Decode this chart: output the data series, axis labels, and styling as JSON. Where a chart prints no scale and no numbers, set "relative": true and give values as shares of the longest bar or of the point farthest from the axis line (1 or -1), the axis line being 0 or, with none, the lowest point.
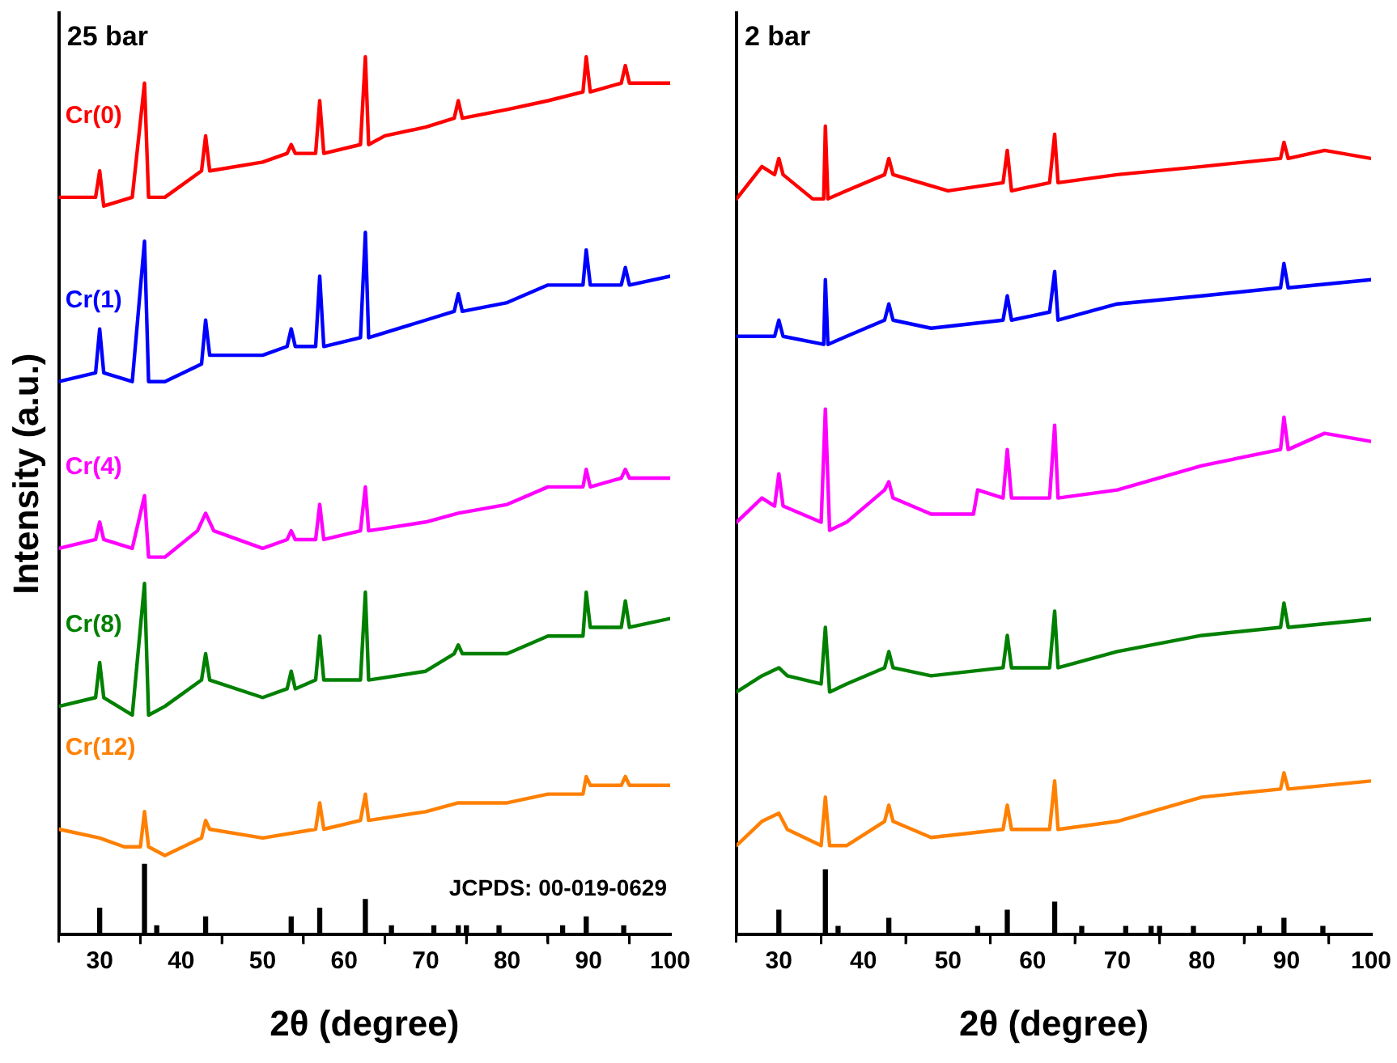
{
  "chart_data": [
    {
      "type": "line",
      "title": "25 bar",
      "xlabel": "2θ (degree)",
      "ylabel": "Intensity (a.u.)",
      "relative": true,
      "xlim": [
        25,
        100
      ],
      "xticks": [
        30,
        {
          "value": 35,
          "label": null
        },
        40,
        {
          "value": 45,
          "label": null
        },
        50,
        {
          "value": 55,
          "label": null
        },
        60,
        {
          "value": 65,
          "label": null
        },
        70,
        {
          "value": 75,
          "label": null
        },
        80,
        {
          "value": 85,
          "label": null
        },
        90,
        {
          "value": 95,
          "label": null
        },
        100
      ],
      "legend": false,
      "grid": false,
      "marker": "none",
      "line_style": "solid",
      "annotations": [
        "JCPDS: 00-019-0629"
      ],
      "series": [
        {
          "name": "Cr(0)",
          "color": "#ff0000",
          "x": [
            25,
            29.5,
            30,
            30.5,
            34,
            35.5,
            36,
            38,
            42.5,
            43,
            43.5,
            50,
            53,
            53.5,
            54,
            56.5,
            57,
            57.5,
            62,
            62.6,
            63,
            65,
            70,
            73.5,
            74,
            74.5,
            80,
            85,
            89.3,
            89.7,
            90.2,
            94,
            94.5,
            95,
            100
          ],
          "values": [
            0.84,
            0.84,
            0.87,
            0.83,
            0.84,
            0.97,
            0.84,
            0.84,
            0.87,
            0.91,
            0.87,
            0.88,
            0.89,
            0.9,
            0.89,
            0.89,
            0.95,
            0.89,
            0.9,
            1.0,
            0.9,
            0.91,
            0.92,
            0.93,
            0.95,
            0.93,
            0.94,
            0.95,
            0.96,
            1.0,
            0.96,
            0.97,
            0.99,
            0.97,
            0.97
          ]
        },
        {
          "name": "Cr(1)",
          "color": "#0000ff",
          "x": [
            25,
            29.5,
            30,
            30.5,
            34,
            35.5,
            36,
            38,
            42.5,
            43,
            43.5,
            50,
            53,
            53.5,
            54,
            56.5,
            57,
            57.5,
            62,
            62.6,
            63,
            70,
            73.5,
            74,
            74.5,
            80,
            85,
            89.3,
            89.7,
            90.2,
            94,
            94.5,
            95,
            100
          ],
          "values": [
            0.63,
            0.64,
            0.69,
            0.64,
            0.63,
            0.79,
            0.63,
            0.63,
            0.65,
            0.7,
            0.66,
            0.66,
            0.67,
            0.69,
            0.67,
            0.67,
            0.75,
            0.67,
            0.68,
            0.8,
            0.68,
            0.7,
            0.71,
            0.73,
            0.71,
            0.72,
            0.74,
            0.74,
            0.78,
            0.74,
            0.74,
            0.76,
            0.74,
            0.75
          ]
        },
        {
          "name": "Cr(4)",
          "color": "#ff00ff",
          "x": [
            25,
            29.5,
            30,
            30.5,
            34,
            35.5,
            36,
            38,
            42,
            43,
            44,
            50,
            53,
            53.5,
            54,
            56.5,
            57,
            57.5,
            62,
            62.6,
            63,
            70,
            74,
            80,
            85,
            89.3,
            89.7,
            90.2,
            94,
            94.5,
            95,
            100
          ],
          "values": [
            0.44,
            0.45,
            0.47,
            0.45,
            0.44,
            0.5,
            0.43,
            0.43,
            0.46,
            0.48,
            0.46,
            0.44,
            0.45,
            0.46,
            0.45,
            0.45,
            0.49,
            0.45,
            0.46,
            0.51,
            0.46,
            0.47,
            0.48,
            0.49,
            0.51,
            0.51,
            0.53,
            0.51,
            0.52,
            0.53,
            0.52,
            0.52
          ]
        },
        {
          "name": "Cr(8)",
          "color": "#008000",
          "x": [
            25,
            29.5,
            30,
            30.5,
            34,
            35.5,
            36,
            38,
            42.5,
            43,
            43.5,
            50,
            53,
            53.5,
            54,
            56.5,
            57,
            57.5,
            62,
            62.6,
            63,
            70,
            73.5,
            74,
            74.5,
            80,
            85,
            89.3,
            89.7,
            90.2,
            94,
            94.5,
            95,
            100
          ],
          "values": [
            0.26,
            0.27,
            0.31,
            0.27,
            0.25,
            0.4,
            0.25,
            0.26,
            0.29,
            0.32,
            0.29,
            0.27,
            0.28,
            0.3,
            0.28,
            0.29,
            0.34,
            0.29,
            0.29,
            0.39,
            0.29,
            0.3,
            0.32,
            0.33,
            0.32,
            0.32,
            0.34,
            0.34,
            0.39,
            0.35,
            0.35,
            0.38,
            0.35,
            0.36
          ]
        },
        {
          "name": "Cr(12)",
          "color": "#ff8000",
          "x": [
            25,
            30,
            33,
            35,
            35.5,
            36,
            38,
            42.5,
            43,
            43.5,
            50,
            56.5,
            57,
            57.5,
            62,
            62.6,
            63,
            70,
            74,
            80,
            85,
            89.3,
            89.7,
            90.2,
            94,
            94.5,
            95,
            100
          ],
          "values": [
            0.12,
            0.11,
            0.1,
            0.1,
            0.14,
            0.1,
            0.09,
            0.11,
            0.13,
            0.12,
            0.11,
            0.12,
            0.15,
            0.12,
            0.13,
            0.16,
            0.13,
            0.14,
            0.15,
            0.15,
            0.16,
            0.16,
            0.18,
            0.17,
            0.17,
            0.18,
            0.17,
            0.17
          ]
        },
        {
          "type": "bar",
          "color": "#000000",
          "x": [
            30,
            35.5,
            37,
            43,
            53.5,
            57,
            62.6,
            65.8,
            71,
            74,
            75,
            79,
            86.8,
            89.7,
            94.3
          ],
          "values": [
            0.03,
            0.08,
            0.01,
            0.02,
            0.02,
            0.03,
            0.04,
            0.01,
            0.01,
            0.01,
            0.01,
            0.01,
            0.01,
            0.02,
            0.01
          ]
        }
      ]
    },
    {
      "type": "line",
      "title": "2 bar",
      "xlabel": "2θ (degree)",
      "relative": true,
      "xlim": [
        25,
        100
      ],
      "xticks": [
        30,
        {
          "value": 35,
          "label": null
        },
        40,
        {
          "value": 45,
          "label": null
        },
        50,
        {
          "value": 55,
          "label": null
        },
        60,
        {
          "value": 65,
          "label": null
        },
        70,
        {
          "value": 75,
          "label": null
        },
        80,
        {
          "value": 85,
          "label": null
        },
        90,
        {
          "value": 95,
          "label": null
        },
        100
      ],
      "legend": false,
      "grid": false,
      "marker": "none",
      "line_style": "solid",
      "series": [
        {
          "color": "#ff0000",
          "x": [
            25,
            28,
            29.5,
            30,
            30.5,
            34,
            35.3,
            35.5,
            35.8,
            38,
            42.5,
            43,
            43.5,
            50,
            56.5,
            57,
            57.5,
            62,
            62.6,
            63,
            70,
            80,
            89.3,
            89.7,
            90.2,
            94.5,
            100
          ],
          "values": [
            0.91,
            0.95,
            0.94,
            0.96,
            0.94,
            0.91,
            0.91,
            1.0,
            0.91,
            0.92,
            0.94,
            0.96,
            0.94,
            0.92,
            0.93,
            0.97,
            0.92,
            0.93,
            0.99,
            0.93,
            0.94,
            0.95,
            0.96,
            0.98,
            0.96,
            0.97,
            0.96
          ]
        },
        {
          "color": "#0000ff",
          "x": [
            25,
            29.5,
            30,
            30.5,
            35.3,
            35.5,
            35.8,
            38,
            42.5,
            43,
            43.5,
            48,
            56.5,
            57,
            57.5,
            62,
            62.6,
            63,
            70,
            80,
            89.3,
            89.7,
            90.2,
            100
          ],
          "values": [
            0.74,
            0.74,
            0.76,
            0.74,
            0.73,
            0.81,
            0.73,
            0.74,
            0.76,
            0.78,
            0.76,
            0.75,
            0.76,
            0.79,
            0.76,
            0.77,
            0.82,
            0.76,
            0.78,
            0.79,
            0.8,
            0.83,
            0.8,
            0.81
          ]
        },
        {
          "color": "#ff00ff",
          "x": [
            25,
            28,
            29.5,
            30,
            30.5,
            35,
            35.5,
            36,
            38,
            42.5,
            43,
            43.5,
            48,
            53,
            53.5,
            56.5,
            57,
            57.5,
            62,
            62.6,
            63,
            70,
            80,
            89.3,
            89.7,
            90.2,
            94.5,
            100
          ],
          "values": [
            0.51,
            0.54,
            0.53,
            0.57,
            0.53,
            0.51,
            0.65,
            0.5,
            0.51,
            0.55,
            0.56,
            0.54,
            0.52,
            0.52,
            0.55,
            0.54,
            0.6,
            0.54,
            0.54,
            0.63,
            0.54,
            0.55,
            0.58,
            0.6,
            0.64,
            0.6,
            0.62,
            0.61
          ]
        },
        {
          "color": "#008000",
          "x": [
            25,
            28,
            30,
            31,
            35,
            35.5,
            36,
            38,
            42.5,
            43,
            43.5,
            48,
            56.5,
            57,
            57.5,
            62,
            62.6,
            63,
            70,
            80,
            89.3,
            89.7,
            90.2,
            100
          ],
          "values": [
            0.3,
            0.32,
            0.33,
            0.32,
            0.31,
            0.38,
            0.3,
            0.31,
            0.33,
            0.35,
            0.33,
            0.32,
            0.33,
            0.37,
            0.33,
            0.33,
            0.4,
            0.33,
            0.35,
            0.37,
            0.38,
            0.41,
            0.38,
            0.39
          ]
        },
        {
          "color": "#ff8000",
          "x": [
            25,
            28,
            30,
            31,
            35,
            35.5,
            36,
            38,
            42.5,
            43,
            43.5,
            48,
            56.5,
            57,
            57.5,
            62,
            62.6,
            63,
            70,
            80,
            89.3,
            89.7,
            90.2,
            100
          ],
          "values": [
            0.11,
            0.14,
            0.15,
            0.13,
            0.11,
            0.17,
            0.11,
            0.11,
            0.14,
            0.16,
            0.14,
            0.12,
            0.13,
            0.16,
            0.13,
            0.13,
            0.19,
            0.13,
            0.14,
            0.17,
            0.18,
            0.2,
            0.18,
            0.19
          ]
        },
        {
          "type": "bar",
          "color": "#000000",
          "x": [
            30,
            35.5,
            37,
            43,
            53.5,
            57,
            62.6,
            65.8,
            71,
            74,
            75,
            79,
            86.8,
            89.7,
            94.3
          ],
          "values": [
            0.03,
            0.08,
            0.01,
            0.02,
            0.01,
            0.03,
            0.04,
            0.01,
            0.01,
            0.01,
            0.01,
            0.01,
            0.01,
            0.02,
            0.01
          ]
        }
      ]
    }
  ]
}
